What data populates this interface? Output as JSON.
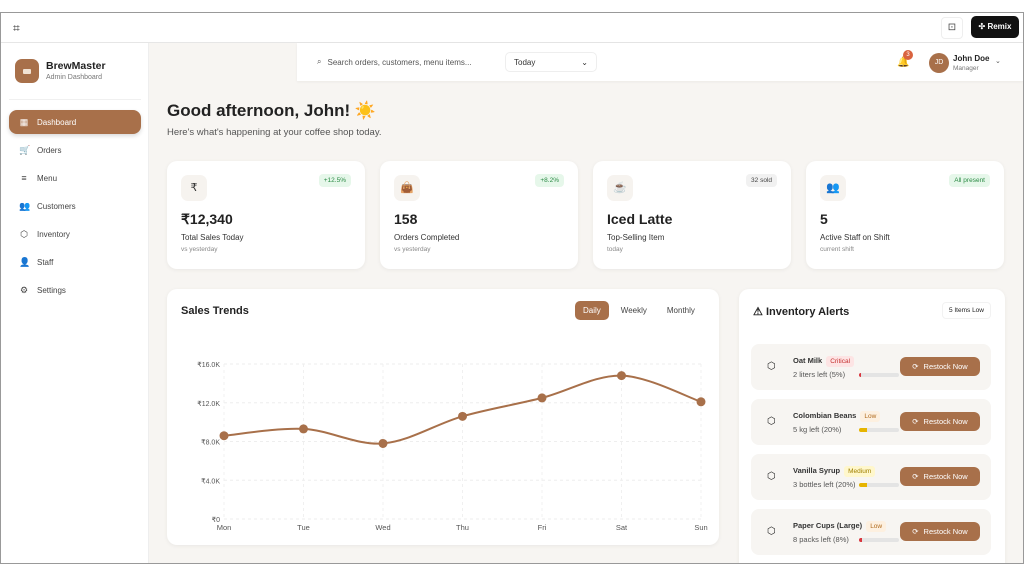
{
  "topbar": {
    "remix_label": "Remix",
    "app_icon": "figma-icon",
    "feedback_icon": "comment-icon"
  },
  "sidebar": {
    "brand": "BrewMaster",
    "subtitle": "Admin Dashboard",
    "items": [
      {
        "label": "Dashboard",
        "icon": "grid-icon",
        "glyph": "▦",
        "active": true
      },
      {
        "label": "Orders",
        "icon": "cart-icon",
        "glyph": "🛒"
      },
      {
        "label": "Menu",
        "icon": "menu-icon",
        "glyph": "≡"
      },
      {
        "label": "Customers",
        "icon": "users-icon",
        "glyph": "👥"
      },
      {
        "label": "Inventory",
        "icon": "box-icon",
        "glyph": "⬡"
      },
      {
        "label": "Staff",
        "icon": "user-check-icon",
        "glyph": "👤"
      },
      {
        "label": "Settings",
        "icon": "gear-icon",
        "glyph": "⚙"
      }
    ]
  },
  "header": {
    "search_placeholder": "Search orders, customers, menu items...",
    "date_filter": "Today",
    "notifications": "3",
    "user": {
      "initials": "JD",
      "name": "John Doe",
      "role": "Manager"
    }
  },
  "greeting": {
    "title": "Good afternoon, John! ☀️",
    "subtitle": "Here's what's happening at your coffee shop today."
  },
  "stats": [
    {
      "icon": "rupee-icon",
      "glyph": "₹",
      "badge": "+12.5%",
      "badge_style": "green",
      "value": "₹12,340",
      "label": "Total Sales Today",
      "sub": "vs yesterday"
    },
    {
      "icon": "shopping-bag-icon",
      "glyph": "👜",
      "badge": "+8.2%",
      "badge_style": "green",
      "value": "158",
      "label": "Orders Completed",
      "sub": "vs yesterday"
    },
    {
      "icon": "coffee-icon",
      "glyph": "☕",
      "badge": "32 sold",
      "badge_style": "gray",
      "value": "Iced Latte",
      "label": "Top-Selling Item",
      "sub": "today"
    },
    {
      "icon": "users-icon",
      "glyph": "👥",
      "badge": "All present",
      "badge_style": "green",
      "value": "5",
      "label": "Active Staff on Shift",
      "sub": "current shift"
    }
  ],
  "sales": {
    "title": "Sales Trends",
    "tabs": [
      "Daily",
      "Weekly",
      "Monthly"
    ],
    "active_tab": "Daily"
  },
  "chart_data": {
    "type": "line",
    "title": "Sales Trends",
    "categories": [
      "Mon",
      "Tue",
      "Wed",
      "Thu",
      "Fri",
      "Sat",
      "Sun"
    ],
    "values": [
      8600,
      9300,
      7800,
      10600,
      12500,
      14800,
      12100
    ],
    "yticks": [
      "₹0",
      "₹4.0K",
      "₹8.0K",
      "₹12.0K",
      "₹16.0K"
    ],
    "ylim": [
      0,
      16000
    ],
    "grid": true,
    "color": "#a8704a"
  },
  "inventory": {
    "title": "Inventory Alerts",
    "badge": "5 Items Low",
    "button_label": "Restock Now",
    "items": [
      {
        "name": "Oat Milk",
        "level": "Critical",
        "style": "crit",
        "qty": "2 liters left (5%)",
        "pct": 5,
        "color": "#d9363e"
      },
      {
        "name": "Colombian Beans",
        "level": "Low",
        "style": "low",
        "qty": "5 kg left (20%)",
        "pct": 20,
        "color": "#e6b400"
      },
      {
        "name": "Vanilla Syrup",
        "level": "Medium",
        "style": "med",
        "qty": "3 bottles left (20%)",
        "pct": 20,
        "color": "#e6b400"
      },
      {
        "name": "Paper Cups (Large)",
        "level": "Low",
        "style": "low",
        "qty": "8 packs left (8%)",
        "pct": 8,
        "color": "#d9363e"
      }
    ]
  }
}
